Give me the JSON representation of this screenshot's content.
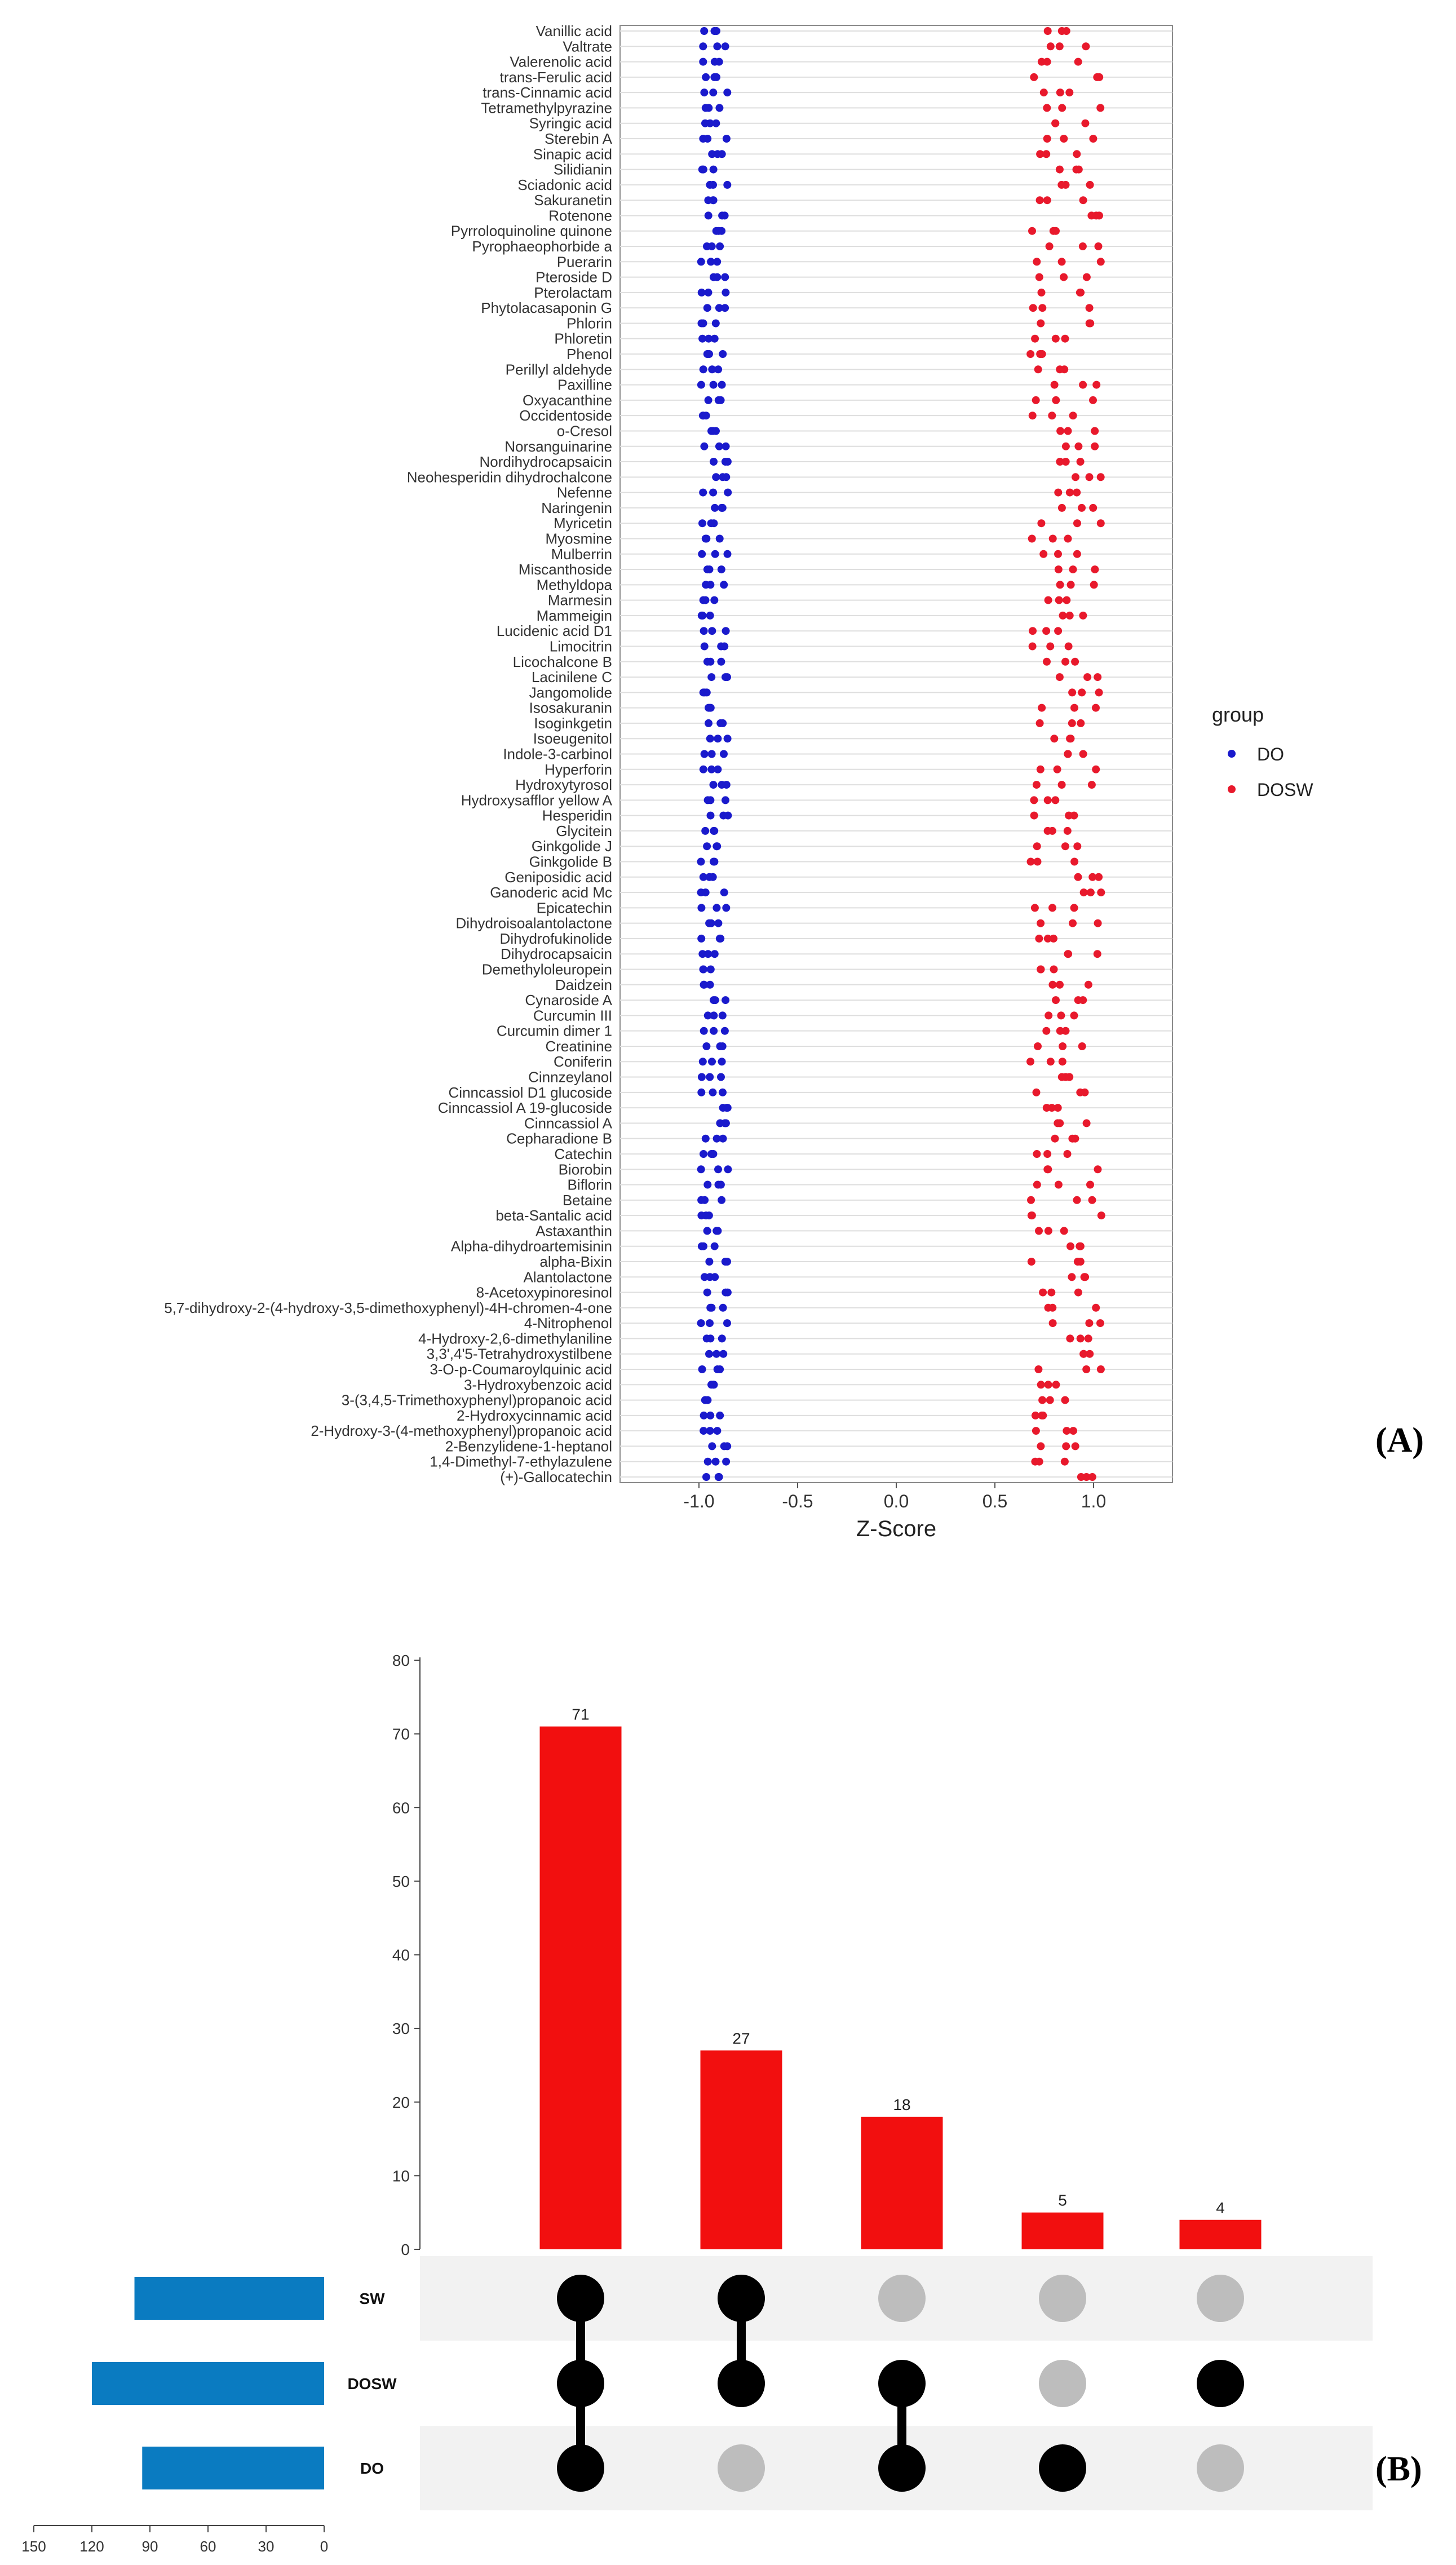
{
  "panel_labels": [
    "(A)",
    "(B)"
  ],
  "colors": {
    "DO": "#1a1acc",
    "DOSW": "#e8192c",
    "bar": "#f20f0f",
    "setbar": "#0a7bc1",
    "dot_on": "#000000",
    "dot_off": "#bdbdbd",
    "stripe": "#f2f2f2"
  },
  "chart_data": [
    {
      "type": "scatter",
      "panel": "(A)",
      "xlabel": "Z-Score",
      "xlim": [
        -1.4,
        1.4
      ],
      "xticks": [
        -1.0,
        -0.5,
        0.0,
        0.5,
        1.0
      ],
      "xtick_labels": [
        "-1.0",
        "-0.5",
        "0.0",
        "0.5",
        "1.0"
      ],
      "grid": true,
      "legend": {
        "title": "group",
        "position": "right",
        "entries": [
          "DO",
          "DOSW"
        ]
      },
      "categories": [
        "Vanillic acid",
        "Valtrate",
        "Valerenolic acid",
        "trans-Ferulic acid",
        "trans-Cinnamic acid",
        "Tetramethylpyrazine",
        "Syringic acid",
        "Sterebin A",
        "Sinapic acid",
        "Silidianin",
        "Sciadonic acid",
        "Sakuranetin",
        "Rotenone",
        "Pyrroloquinoline quinone",
        "Pyrophaeophorbide a",
        "Puerarin",
        "Pteroside D",
        "Pterolactam",
        "Phytolacasaponin G",
        "Phlorin",
        "Phloretin",
        "Phenol",
        "Perillyl aldehyde",
        "Paxilline",
        "Oxyacanthine",
        "Occidentoside",
        "o-Cresol",
        "Norsanguinarine",
        "Nordihydrocapsaicin",
        "Neohesperidin dihydrochalcone",
        "Nefenne",
        "Naringenin",
        "Myricetin",
        "Myosmine",
        "Mulberrin",
        "Miscanthoside",
        "Methyldopa",
        "Marmesin",
        "Mammeigin",
        "Lucidenic acid D1",
        "Limocitrin",
        "Licochalcone B",
        "Lacinilene C",
        "Jangomolide",
        "Isosakuranin",
        "Isoginkgetin",
        "Isoeugenitol",
        "Indole-3-carbinol",
        "Hyperforin",
        "Hydroxytyrosol",
        "Hydroxysafflor yellow A",
        "Hesperidin",
        "Glycitein",
        "Ginkgolide J",
        "Ginkgolide B",
        "Geniposidic acid",
        "Ganoderic acid Mc",
        "Epicatechin",
        "Dihydroisoalantolactone",
        "Dihydrofukinolide",
        "Dihydrocapsaicin",
        "Demethyloleuropein",
        "Daidzein",
        "Cynaroside A",
        "Curcumin III",
        "Curcumin dimer 1",
        "Creatinine",
        "Coniferin",
        "Cinnzeylanol",
        "Cinncassiol D1 glucoside",
        "Cinncassiol A 19-glucoside",
        "Cinncassiol A",
        "Cepharadione B",
        "Catechin",
        "Biorobin",
        "Biflorin",
        "Betaine",
        "beta-Santalic acid",
        "Astaxanthin",
        "Alpha-dihydroartemisinin",
        "alpha-Bixin",
        "Alantolactone",
        "8-Acetoxypinoresinol",
        "5,7-dihydroxy-2-(4-hydroxy-3,5-dimethoxyphenyl)-4H-chromen-4-one",
        "4-Nitrophenol",
        "4-Hydroxy-2,6-dimethylaniline",
        "3,3',4'5-Tetrahydroxystilbene",
        "3-O-p-Coumaroylquinic acid",
        "3-Hydroxybenzoic acid",
        "3-(3,4,5-Trimethoxyphenyl)propanoic acid",
        "2-Hydroxycinnamic acid",
        "2-Hydroxy-3-(4-methoxyphenyl)propanoic acid",
        "2-Benzylidene-1-heptanol",
        "1,4-Dimethyl-7-ethylazulene",
        "(+)-Gallocatechin"
      ],
      "series": [
        {
          "name": "DO",
          "side": "low"
        },
        {
          "name": "DOSW",
          "side": "high"
        }
      ]
    },
    {
      "type": "bar",
      "panel": "(B)",
      "subtype": "upset",
      "ylim": [
        0,
        80
      ],
      "yticks": [
        0,
        10,
        20,
        30,
        40,
        50,
        60,
        70,
        80
      ],
      "intersections": [
        {
          "value": 71,
          "label": "71",
          "members": [
            "SW",
            "DOSW",
            "DO"
          ]
        },
        {
          "value": 27,
          "label": "27",
          "members": [
            "SW",
            "DOSW"
          ]
        },
        {
          "value": 18,
          "label": "18",
          "members": [
            "DOSW",
            "DO"
          ]
        },
        {
          "value": 5,
          "label": "5",
          "members": [
            "DO"
          ]
        },
        {
          "value": 4,
          "label": "4",
          "members": [
            "DOSW"
          ]
        }
      ],
      "sets": [
        {
          "name": "SW",
          "size": 98
        },
        {
          "name": "DOSW",
          "size": 120
        },
        {
          "name": "DO",
          "size": 94
        }
      ],
      "set_axis_ticks": [
        "150",
        "120",
        "90",
        "60",
        "30",
        "0"
      ],
      "set_axis_max": 150
    }
  ]
}
